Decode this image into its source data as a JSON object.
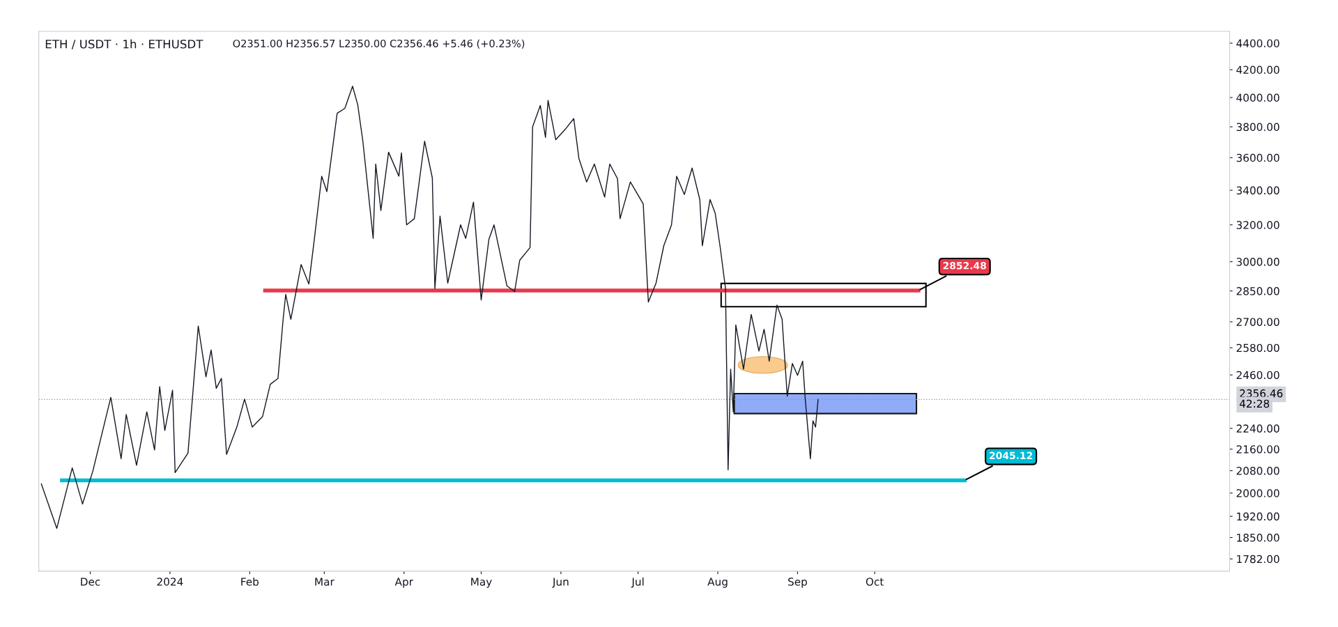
{
  "chart_data": {
    "type": "line",
    "title": "ETH / USDT · 1h · ETHUSDT",
    "subtitle": "O2351.00 H2356.57 L2350.00 C2356.46 +5.46 (+0.23%)",
    "log": true,
    "xlim": [
      "2023-11-11",
      "2025-02-16"
    ],
    "ylim": [
      1744,
      4492
    ],
    "xticks": [
      {
        "value": "2023-12-01",
        "label": "Dec"
      },
      {
        "value": "2024-01-01",
        "label": "2024"
      },
      {
        "value": "2024-02-01",
        "label": "Feb"
      },
      {
        "value": "2024-03-01",
        "label": "Mar"
      },
      {
        "value": "2024-04-01",
        "label": "Apr"
      },
      {
        "value": "2024-05-01",
        "label": "May"
      },
      {
        "value": "2024-06-01",
        "label": "Jun"
      },
      {
        "value": "2024-07-01",
        "label": "Jul"
      },
      {
        "value": "2024-08-01",
        "label": "Aug"
      },
      {
        "value": "2024-09-01",
        "label": "Sep"
      },
      {
        "value": "2024-10-01",
        "label": "Oct"
      }
    ],
    "yticks": [
      {
        "value": 1782,
        "label": "1782.00"
      },
      {
        "value": 1850,
        "label": "1850.00"
      },
      {
        "value": 1920,
        "label": "1920.00"
      },
      {
        "value": 2000,
        "label": "2000.00"
      },
      {
        "value": 2080,
        "label": "2080.00"
      },
      {
        "value": 2160,
        "label": "2160.00"
      },
      {
        "value": 2240,
        "label": "2240.00"
      },
      {
        "value": 2460,
        "label": "2460.00"
      },
      {
        "value": 2580,
        "label": "2580.00"
      },
      {
        "value": 2700,
        "label": "2700.00"
      },
      {
        "value": 2850,
        "label": "2850.00"
      },
      {
        "value": 3000,
        "label": "3000.00"
      },
      {
        "value": 3200,
        "label": "3200.00"
      },
      {
        "value": 3400,
        "label": "3400.00"
      },
      {
        "value": 3600,
        "label": "3600.00"
      },
      {
        "value": 3800,
        "label": "3800.00"
      },
      {
        "value": 4000,
        "label": "4000.00"
      },
      {
        "value": 4200,
        "label": "4200.00"
      },
      {
        "value": 4400,
        "label": "4400.00"
      }
    ],
    "series": [
      {
        "color": "#131722",
        "x": [
          "2023-11-12",
          "2023-11-18",
          "2023-11-24",
          "2023-11-28",
          "2023-12-02",
          "2023-12-09",
          "2023-12-13",
          "2023-12-15",
          "2023-12-19",
          "2023-12-23",
          "2023-12-26",
          "2023-12-28",
          "2023-12-30",
          "2024-01-02",
          "2024-01-03",
          "2024-01-08",
          "2024-01-12",
          "2024-01-15",
          "2024-01-17",
          "2024-01-19",
          "2024-01-21",
          "2024-01-23",
          "2024-01-27",
          "2024-01-30",
          "2024-02-02",
          "2024-02-06",
          "2024-02-09",
          "2024-02-12",
          "2024-02-14",
          "2024-02-15",
          "2024-02-17",
          "2024-02-21",
          "2024-02-24",
          "2024-02-26",
          "2024-02-29",
          "2024-03-02",
          "2024-03-06",
          "2024-03-09",
          "2024-03-12",
          "2024-03-14",
          "2024-03-16",
          "2024-03-20",
          "2024-03-21",
          "2024-03-23",
          "2024-03-26",
          "2024-03-30",
          "2024-03-31",
          "2024-04-02",
          "2024-04-05",
          "2024-04-09",
          "2024-04-12",
          "2024-04-13",
          "2024-04-15",
          "2024-04-18",
          "2024-04-23",
          "2024-04-25",
          "2024-04-28",
          "2024-05-01",
          "2024-05-04",
          "2024-05-06",
          "2024-05-11",
          "2024-05-14",
          "2024-05-16",
          "2024-05-20",
          "2024-05-21",
          "2024-05-24",
          "2024-05-26",
          "2024-05-27",
          "2024-05-30",
          "2024-06-03",
          "2024-06-06",
          "2024-06-08",
          "2024-06-11",
          "2024-06-14",
          "2024-06-18",
          "2024-06-20",
          "2024-06-23",
          "2024-06-24",
          "2024-06-28",
          "2024-07-03",
          "2024-07-05",
          "2024-07-08",
          "2024-07-11",
          "2024-07-14",
          "2024-07-16",
          "2024-07-19",
          "2024-07-22",
          "2024-07-25",
          "2024-07-26",
          "2024-07-29",
          "2024-07-31",
          "2024-08-02",
          "2024-08-04",
          "2024-08-05",
          "2024-08-06",
          "2024-08-07",
          "2024-08-08",
          "2024-08-11",
          "2024-08-14",
          "2024-08-17",
          "2024-08-19",
          "2024-08-21",
          "2024-08-24",
          "2024-08-26",
          "2024-08-28",
          "2024-08-30",
          "2024-09-01",
          "2024-09-03",
          "2024-09-04",
          "2024-09-06",
          "2024-09-07",
          "2024-09-08",
          "2024-09-09"
        ],
        "values": [
          2032,
          1880,
          2090,
          1962,
          2078,
          2365,
          2124,
          2295,
          2100,
          2306,
          2157,
          2410,
          2232,
          2395,
          2073,
          2145,
          2680,
          2452,
          2570,
          2403,
          2445,
          2140,
          2245,
          2358,
          2245,
          2287,
          2420,
          2445,
          2712,
          2833,
          2712,
          2985,
          2885,
          3105,
          3485,
          3392,
          3891,
          3925,
          4080,
          3950,
          3705,
          3125,
          3560,
          3282,
          3635,
          3485,
          3630,
          3200,
          3235,
          3705,
          3475,
          2862,
          3250,
          2890,
          3200,
          3125,
          3330,
          2805,
          3120,
          3200,
          2876,
          2847,
          3008,
          3075,
          3800,
          3945,
          3730,
          3980,
          3715,
          3790,
          3855,
          3595,
          3450,
          3560,
          3360,
          3560,
          3470,
          3235,
          3450,
          3320,
          2795,
          2890,
          3085,
          3200,
          3485,
          3375,
          3535,
          3345,
          3085,
          3345,
          3265,
          3070,
          2862,
          2083,
          2485,
          2306,
          2685,
          2485,
          2735,
          2565,
          2665,
          2520,
          2780,
          2712,
          2370,
          2510,
          2458,
          2520,
          2358,
          2124,
          2270,
          2245,
          2356.46
        ]
      },
      {
        "color": "#e8394a",
        "x": [
          "2024-02-07",
          "2024-10-18"
        ],
        "values": [
          2852.48,
          2852.48
        ]
      },
      {
        "color": "#00bcd4",
        "x": [
          "2023-11-20",
          "2024-11-05"
        ],
        "values": [
          2045.12,
          2045.12
        ]
      }
    ],
    "ref_lines": [
      {
        "axis": "y",
        "value": 2356.46,
        "label": "2356.46",
        "color": "#9598a1",
        "line_style": "dotted"
      }
    ],
    "annotations": [
      {
        "text": "2852.48",
        "x": "2024-10-18",
        "y": 2852.48
      },
      {
        "text": "2045.12",
        "x": "2024-11-05",
        "y": 2045.12
      },
      "42:28"
    ]
  }
}
